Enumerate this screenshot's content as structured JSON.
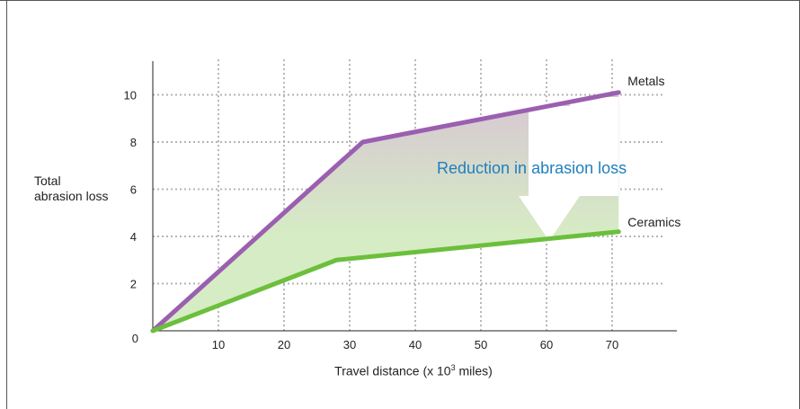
{
  "chart_data": {
    "type": "line",
    "xlabel_prefix": "Travel distance (x 10",
    "xlabel_exponent": "3",
    "xlabel_suffix": " miles)",
    "ylabel_line1": "Total",
    "ylabel_line2": "abrasion loss",
    "x_ticks": [
      10,
      20,
      30,
      40,
      50,
      60,
      70
    ],
    "y_ticks": [
      0,
      2,
      4,
      6,
      8,
      10
    ],
    "xlim": [
      0,
      78
    ],
    "ylim": [
      0,
      11.5
    ],
    "grid": true,
    "series": [
      {
        "name": "Metals",
        "color": "#9b5fb0",
        "points": [
          [
            0,
            0
          ],
          [
            32,
            8
          ],
          [
            71,
            10.1
          ]
        ]
      },
      {
        "name": "Ceramics",
        "color": "#6cbf3c",
        "points": [
          [
            0,
            0
          ],
          [
            28,
            3
          ],
          [
            71,
            4.2
          ]
        ]
      }
    ],
    "annotation": {
      "text": "Reduction in abrasion loss",
      "color": "#1f7fbf"
    },
    "fill_colors": {
      "top": "#d7c6d3",
      "bottom": "#d6ecc4"
    }
  }
}
